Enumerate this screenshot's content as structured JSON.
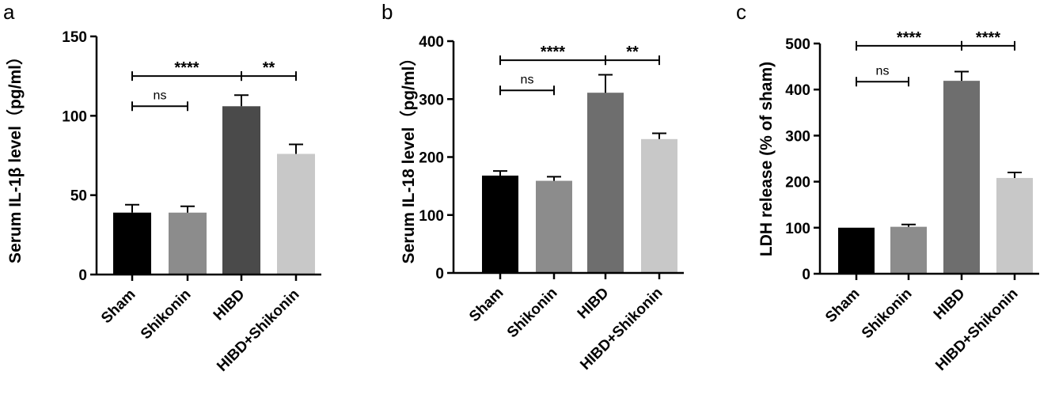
{
  "chart_data": [
    {
      "type": "bar",
      "panel": "a",
      "categories": [
        "Sham",
        "Shikonin",
        "HIBD",
        "HIBD+Shikonin"
      ],
      "values": [
        39,
        39,
        106,
        76
      ],
      "errors": [
        5,
        4,
        7,
        6
      ],
      "colors": [
        "#000000",
        "#8c8c8c",
        "#4a4a4a",
        "#c8c8c8"
      ],
      "ylabel": "Serum IL-1β level（pg/ml）",
      "ylim": [
        0,
        150
      ],
      "yticks": [
        0,
        50,
        100,
        150
      ],
      "significance": [
        {
          "from": 0,
          "to": 1,
          "label": "ns",
          "y": 106
        },
        {
          "from": 0,
          "to": 2,
          "label": "****",
          "y": 125
        },
        {
          "from": 2,
          "to": 3,
          "label": "**",
          "y": 125
        }
      ]
    },
    {
      "type": "bar",
      "panel": "b",
      "categories": [
        "Sham",
        "Shikonin",
        "HIBD",
        "HIBD+Shikonin"
      ],
      "values": [
        168,
        159,
        311,
        231
      ],
      "errors": [
        8,
        7,
        31,
        10
      ],
      "colors": [
        "#000000",
        "#8c8c8c",
        "#6e6e6e",
        "#c8c8c8"
      ],
      "ylabel": "Serum IL-18 level（pg/ml）",
      "ylim": [
        0,
        400
      ],
      "yticks": [
        0,
        100,
        200,
        300,
        400
      ],
      "significance": [
        {
          "from": 0,
          "to": 1,
          "label": "ns",
          "y": 315
        },
        {
          "from": 0,
          "to": 2,
          "label": "****",
          "y": 367
        },
        {
          "from": 2,
          "to": 3,
          "label": "**",
          "y": 367
        }
      ]
    },
    {
      "type": "bar",
      "panel": "c",
      "categories": [
        "Sham",
        "Shikonin",
        "HIBD",
        "HIBD+Shikonin"
      ],
      "values": [
        100,
        102,
        419,
        208
      ],
      "errors": [
        0,
        5,
        20,
        12
      ],
      "colors": [
        "#000000",
        "#8c8c8c",
        "#6e6e6e",
        "#c8c8c8"
      ],
      "ylabel": "LDH release (% of sham)",
      "ylim": [
        0,
        500
      ],
      "yticks": [
        0,
        100,
        200,
        300,
        400,
        500
      ],
      "significance": [
        {
          "from": 0,
          "to": 1,
          "label": "ns",
          "y": 417
        },
        {
          "from": 0,
          "to": 2,
          "label": "****",
          "y": 495
        },
        {
          "from": 2,
          "to": 3,
          "label": "****",
          "y": 495
        }
      ]
    }
  ]
}
